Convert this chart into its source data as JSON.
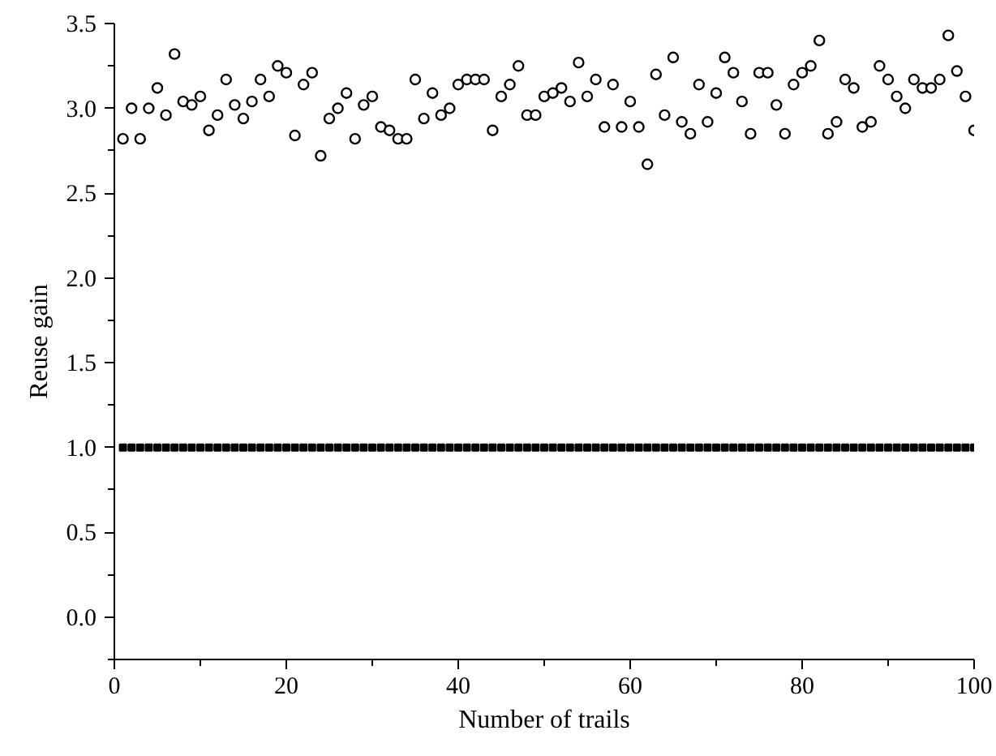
{
  "chart_data": {
    "type": "scatter",
    "xlabel": "Number of trails",
    "ylabel": "Reuse gain",
    "x": [
      1,
      2,
      3,
      4,
      5,
      6,
      7,
      8,
      9,
      10,
      11,
      12,
      13,
      14,
      15,
      16,
      17,
      18,
      19,
      20,
      21,
      22,
      23,
      24,
      25,
      26,
      27,
      28,
      29,
      30,
      31,
      32,
      33,
      34,
      35,
      36,
      37,
      38,
      39,
      40,
      41,
      42,
      43,
      44,
      45,
      46,
      47,
      48,
      49,
      50,
      51,
      52,
      53,
      54,
      55,
      56,
      57,
      58,
      59,
      60,
      61,
      62,
      63,
      64,
      65,
      66,
      67,
      68,
      69,
      70,
      71,
      72,
      73,
      74,
      75,
      76,
      77,
      78,
      79,
      80,
      81,
      82,
      83,
      84,
      85,
      86,
      87,
      88,
      89,
      90,
      91,
      92,
      93,
      94,
      95,
      96,
      97,
      98,
      99,
      100
    ],
    "series": [
      {
        "color": "#000000",
        "marker": "circle",
        "values": [
          2.82,
          3.0,
          2.82,
          3.0,
          3.12,
          2.96,
          3.32,
          3.04,
          3.02,
          3.07,
          2.87,
          2.96,
          3.17,
          3.02,
          2.94,
          3.04,
          3.17,
          3.07,
          3.25,
          3.21,
          2.84,
          3.14,
          3.21,
          2.72,
          2.94,
          3.0,
          3.09,
          2.82,
          3.02,
          3.07,
          2.89,
          2.87,
          2.82,
          2.82,
          3.17,
          2.94,
          3.09,
          2.96,
          3.0,
          3.14,
          3.17,
          3.17,
          3.17,
          2.87,
          3.07,
          3.14,
          3.25,
          2.96,
          2.96,
          3.07,
          3.09,
          3.12,
          3.04,
          3.27,
          3.07,
          3.17,
          2.89,
          3.14,
          2.89,
          3.04,
          2.89,
          2.67,
          3.2,
          2.96,
          3.3,
          2.92,
          2.85,
          3.14,
          2.92,
          3.09,
          3.3,
          3.21,
          3.04,
          2.85,
          3.21,
          3.21,
          3.02,
          2.85,
          3.14,
          3.21,
          3.25,
          3.4,
          2.85,
          2.92,
          3.17,
          3.12,
          2.89,
          2.92,
          3.25,
          3.17,
          3.07,
          3.0,
          3.17,
          3.12,
          3.12,
          3.17,
          3.43,
          3.22,
          3.07,
          2.87
        ]
      },
      {
        "color": "#000000",
        "marker": "square",
        "values": [
          1,
          1,
          1,
          1,
          1,
          1,
          1,
          1,
          1,
          1,
          1,
          1,
          1,
          1,
          1,
          1,
          1,
          1,
          1,
          1,
          1,
          1,
          1,
          1,
          1,
          1,
          1,
          1,
          1,
          1,
          1,
          1,
          1,
          1,
          1,
          1,
          1,
          1,
          1,
          1,
          1,
          1,
          1,
          1,
          1,
          1,
          1,
          1,
          1,
          1,
          1,
          1,
          1,
          1,
          1,
          1,
          1,
          1,
          1,
          1,
          1,
          1,
          1,
          1,
          1,
          1,
          1,
          1,
          1,
          1,
          1,
          1,
          1,
          1,
          1,
          1,
          1,
          1,
          1,
          1,
          1,
          1,
          1,
          1,
          1,
          1,
          1,
          1,
          1,
          1,
          1,
          1,
          1,
          1,
          1,
          1,
          1,
          1,
          1,
          1
        ]
      }
    ],
    "xlim": [
      0,
      100
    ],
    "ylim": [
      -0.25,
      3.5
    ],
    "xticks": [
      0,
      20,
      40,
      60,
      80,
      100
    ],
    "yticks": [
      "0.0",
      0.5,
      "1.0",
      1.5,
      "2.0",
      2.5,
      "3.0",
      3.5
    ],
    "grid": false
  }
}
